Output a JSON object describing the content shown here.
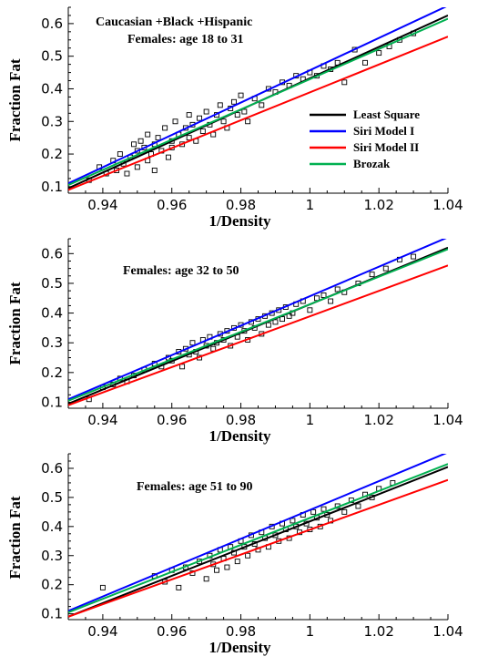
{
  "chart_data": [
    {
      "type": "scatter",
      "title": "Caucasian +Black +Hispanic\nFemales: age 18 to 31",
      "xlabel": "1/Density",
      "ylabel": "Fraction Fat",
      "xlim": [
        0.93,
        1.04
      ],
      "ylim": [
        0.08,
        0.65
      ],
      "xticks": [
        0.94,
        0.96,
        0.98,
        1,
        1.02,
        1.04
      ],
      "xtick_labels": [
        "0.94",
        "0.96",
        "0.98",
        "1",
        "1.02",
        "1.04"
      ],
      "yticks": [
        0.1,
        0.2,
        0.3,
        0.4,
        0.5,
        0.6
      ],
      "ytick_labels": [
        "0.1",
        "0.2",
        "0.3",
        "0.4",
        "0.5",
        "0.6"
      ],
      "legend": {
        "placement": "right",
        "entries": [
          {
            "name": "Least Square",
            "color": "#000000"
          },
          {
            "name": "Siri Model I",
            "color": "#0000ff"
          },
          {
            "name": "Siri Model II",
            "color": "#ff0000"
          },
          {
            "name": "Brozak",
            "color": "#00b050"
          }
        ]
      },
      "lines": [
        {
          "name": "Least Square",
          "color": "#000000",
          "x": [
            0.93,
            1.04
          ],
          "y": [
            0.095,
            0.625
          ]
        },
        {
          "name": "Siri Model I",
          "color": "#0000ff",
          "x": [
            0.93,
            1.04
          ],
          "y": [
            0.11,
            0.655
          ]
        },
        {
          "name": "Siri Model II",
          "color": "#ff0000",
          "x": [
            0.93,
            1.04
          ],
          "y": [
            0.09,
            0.56
          ]
        },
        {
          "name": "Brozak",
          "color": "#00b050",
          "x": [
            0.93,
            1.04
          ],
          "y": [
            0.105,
            0.615
          ]
        }
      ],
      "points": {
        "x": [
          0.936,
          0.939,
          0.941,
          0.943,
          0.944,
          0.945,
          0.946,
          0.947,
          0.948,
          0.949,
          0.95,
          0.95,
          0.951,
          0.952,
          0.953,
          0.953,
          0.954,
          0.955,
          0.955,
          0.956,
          0.957,
          0.958,
          0.959,
          0.96,
          0.96,
          0.961,
          0.962,
          0.963,
          0.964,
          0.965,
          0.965,
          0.966,
          0.967,
          0.968,
          0.969,
          0.97,
          0.971,
          0.972,
          0.973,
          0.974,
          0.975,
          0.976,
          0.977,
          0.978,
          0.979,
          0.98,
          0.981,
          0.982,
          0.984,
          0.986,
          0.988,
          0.99,
          0.992,
          0.994,
          0.996,
          0.998,
          1.0,
          1.002,
          1.004,
          1.006,
          1.008,
          1.01,
          1.013,
          1.016,
          1.02,
          1.023,
          1.026,
          1.03
        ],
        "y": [
          0.12,
          0.16,
          0.14,
          0.18,
          0.15,
          0.2,
          0.17,
          0.14,
          0.19,
          0.23,
          0.21,
          0.16,
          0.24,
          0.22,
          0.18,
          0.26,
          0.2,
          0.23,
          0.15,
          0.25,
          0.21,
          0.28,
          0.19,
          0.24,
          0.22,
          0.3,
          0.26,
          0.23,
          0.28,
          0.25,
          0.32,
          0.29,
          0.24,
          0.31,
          0.27,
          0.33,
          0.29,
          0.26,
          0.32,
          0.35,
          0.3,
          0.28,
          0.34,
          0.36,
          0.32,
          0.38,
          0.33,
          0.3,
          0.37,
          0.35,
          0.4,
          0.39,
          0.42,
          0.41,
          0.44,
          0.43,
          0.45,
          0.44,
          0.47,
          0.46,
          0.48,
          0.42,
          0.52,
          0.48,
          0.51,
          0.53,
          0.55,
          0.57
        ]
      }
    },
    {
      "type": "scatter",
      "title": "Females: age 32 to 50",
      "xlabel": "1/Density",
      "ylabel": "Fraction Fat",
      "xlim": [
        0.93,
        1.04
      ],
      "ylim": [
        0.08,
        0.65
      ],
      "xticks": [
        0.94,
        0.96,
        0.98,
        1,
        1.02,
        1.04
      ],
      "xtick_labels": [
        "0.94",
        "0.96",
        "0.98",
        "1",
        "1.02",
        "1.04"
      ],
      "yticks": [
        0.1,
        0.2,
        0.3,
        0.4,
        0.5,
        0.6
      ],
      "ytick_labels": [
        "0.1",
        "0.2",
        "0.3",
        "0.4",
        "0.5",
        "0.6"
      ],
      "lines": [
        {
          "name": "Least Square",
          "color": "#000000",
          "x": [
            0.93,
            1.04
          ],
          "y": [
            0.095,
            0.62
          ]
        },
        {
          "name": "Siri Model I",
          "color": "#0000ff",
          "x": [
            0.93,
            1.04
          ],
          "y": [
            0.11,
            0.655
          ]
        },
        {
          "name": "Siri Model II",
          "color": "#ff0000",
          "x": [
            0.93,
            1.04
          ],
          "y": [
            0.09,
            0.56
          ]
        },
        {
          "name": "Brozak",
          "color": "#00b050",
          "x": [
            0.93,
            1.04
          ],
          "y": [
            0.105,
            0.615
          ]
        }
      ],
      "points": {
        "x": [
          0.936,
          0.94,
          0.943,
          0.945,
          0.947,
          0.949,
          0.952,
          0.955,
          0.957,
          0.959,
          0.96,
          0.962,
          0.963,
          0.964,
          0.965,
          0.966,
          0.967,
          0.968,
          0.969,
          0.97,
          0.971,
          0.972,
          0.973,
          0.974,
          0.975,
          0.976,
          0.977,
          0.978,
          0.979,
          0.98,
          0.981,
          0.982,
          0.983,
          0.984,
          0.985,
          0.986,
          0.987,
          0.988,
          0.989,
          0.99,
          0.991,
          0.992,
          0.993,
          0.994,
          0.995,
          0.996,
          0.998,
          1.0,
          1.002,
          1.004,
          1.006,
          1.008,
          1.01,
          1.014,
          1.018,
          1.022,
          1.026,
          1.03
        ],
        "y": [
          0.11,
          0.15,
          0.16,
          0.18,
          0.17,
          0.19,
          0.21,
          0.23,
          0.22,
          0.25,
          0.24,
          0.27,
          0.22,
          0.28,
          0.26,
          0.3,
          0.27,
          0.25,
          0.31,
          0.29,
          0.32,
          0.28,
          0.3,
          0.33,
          0.31,
          0.34,
          0.29,
          0.35,
          0.32,
          0.36,
          0.34,
          0.31,
          0.37,
          0.35,
          0.38,
          0.33,
          0.39,
          0.36,
          0.4,
          0.37,
          0.41,
          0.38,
          0.42,
          0.39,
          0.4,
          0.43,
          0.44,
          0.41,
          0.45,
          0.46,
          0.44,
          0.48,
          0.47,
          0.5,
          0.53,
          0.55,
          0.58,
          0.59
        ]
      }
    },
    {
      "type": "scatter",
      "title": "Females: age 51 to 90",
      "xlabel": "1/Density",
      "ylabel": "Fraction Fat",
      "xlim": [
        0.93,
        1.04
      ],
      "ylim": [
        0.08,
        0.65
      ],
      "xticks": [
        0.94,
        0.96,
        0.98,
        1,
        1.02,
        1.04
      ],
      "xtick_labels": [
        "0.94",
        "0.96",
        "0.98",
        "1",
        "1.02",
        "1.04"
      ],
      "yticks": [
        0.1,
        0.2,
        0.3,
        0.4,
        0.5,
        0.6
      ],
      "ytick_labels": [
        "0.1",
        "0.2",
        "0.3",
        "0.4",
        "0.5",
        "0.6"
      ],
      "lines": [
        {
          "name": "Least Square",
          "color": "#000000",
          "x": [
            0.93,
            1.04
          ],
          "y": [
            0.09,
            0.605
          ]
        },
        {
          "name": "Siri Model I",
          "color": "#0000ff",
          "x": [
            0.93,
            1.04
          ],
          "y": [
            0.11,
            0.655
          ]
        },
        {
          "name": "Siri Model II",
          "color": "#ff0000",
          "x": [
            0.93,
            1.04
          ],
          "y": [
            0.09,
            0.56
          ]
        },
        {
          "name": "Brozak",
          "color": "#00b050",
          "x": [
            0.93,
            1.04
          ],
          "y": [
            0.105,
            0.615
          ]
        }
      ],
      "points": {
        "x": [
          0.94,
          0.955,
          0.958,
          0.96,
          0.962,
          0.964,
          0.966,
          0.968,
          0.97,
          0.971,
          0.972,
          0.973,
          0.974,
          0.975,
          0.976,
          0.977,
          0.978,
          0.979,
          0.98,
          0.981,
          0.982,
          0.983,
          0.984,
          0.985,
          0.986,
          0.987,
          0.988,
          0.989,
          0.99,
          0.991,
          0.992,
          0.993,
          0.994,
          0.995,
          0.996,
          0.997,
          0.998,
          0.999,
          1.0,
          1.001,
          1.002,
          1.003,
          1.004,
          1.005,
          1.006,
          1.008,
          1.01,
          1.012,
          1.014,
          1.016,
          1.018,
          1.02,
          1.024
        ],
        "y": [
          0.19,
          0.23,
          0.21,
          0.25,
          0.19,
          0.26,
          0.24,
          0.28,
          0.22,
          0.3,
          0.27,
          0.25,
          0.32,
          0.29,
          0.26,
          0.33,
          0.31,
          0.28,
          0.35,
          0.33,
          0.3,
          0.37,
          0.34,
          0.32,
          0.38,
          0.36,
          0.33,
          0.4,
          0.37,
          0.35,
          0.41,
          0.39,
          0.36,
          0.42,
          0.4,
          0.38,
          0.44,
          0.41,
          0.39,
          0.45,
          0.43,
          0.4,
          0.46,
          0.44,
          0.42,
          0.47,
          0.45,
          0.49,
          0.47,
          0.51,
          0.5,
          0.53,
          0.55
        ]
      }
    }
  ]
}
